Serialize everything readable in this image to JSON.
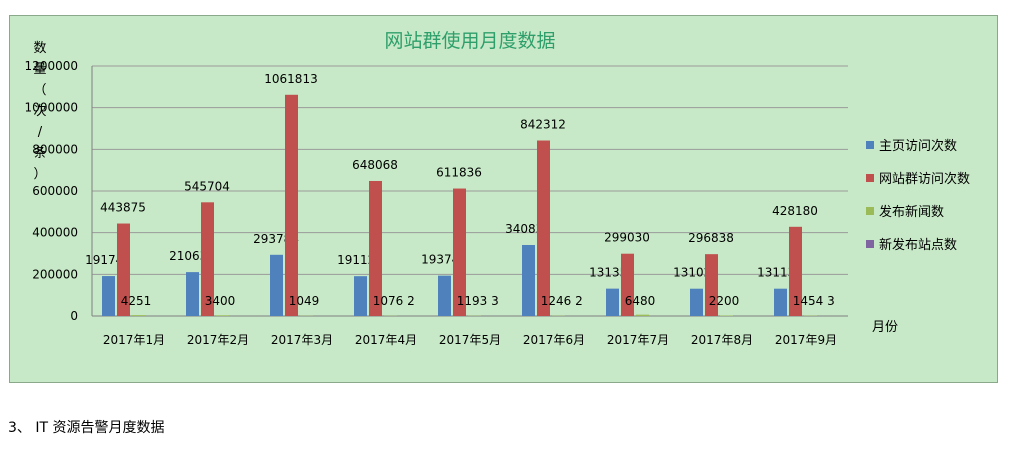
{
  "chart_data": {
    "type": "bar",
    "title": "网站群使用月度数据",
    "ylabel": "数量（次/条）",
    "xlabel": "月份",
    "ylim": [
      0,
      1200000
    ],
    "yticks": [
      "0",
      "200000",
      "400000",
      "600000",
      "800000",
      "1000000",
      "1200000"
    ],
    "grid": true,
    "legend_position": "right",
    "categories": [
      "2017年1月",
      "2017年2月",
      "2017年3月",
      "2017年4月",
      "2017年5月",
      "2017年6月",
      "2017年7月",
      "2017年8月",
      "2017年9月"
    ],
    "series": [
      {
        "name": "主页访问次数",
        "color": "#4f81bd",
        "values": [
          191745,
          210631,
          293784,
          191125,
          193741,
          340837,
          131350,
          131028,
          131139
        ]
      },
      {
        "name": "网站群访问次数",
        "color": "#c0504d",
        "values": [
          443875,
          545704,
          1061813,
          648068,
          611836,
          842312,
          299030,
          296838,
          428180
        ]
      },
      {
        "name": "发布新闻数",
        "color": "#9bbb59",
        "values": [
          4251,
          3400,
          1049,
          1076,
          1193,
          1246,
          6480,
          2200,
          1454
        ]
      },
      {
        "name": "新发布站点数",
        "color": "#8064a2",
        "values": [
          0,
          0,
          0,
          2,
          3,
          2,
          0,
          0,
          3
        ]
      }
    ]
  },
  "section_heading": "3、 IT 资源告警月度数据"
}
